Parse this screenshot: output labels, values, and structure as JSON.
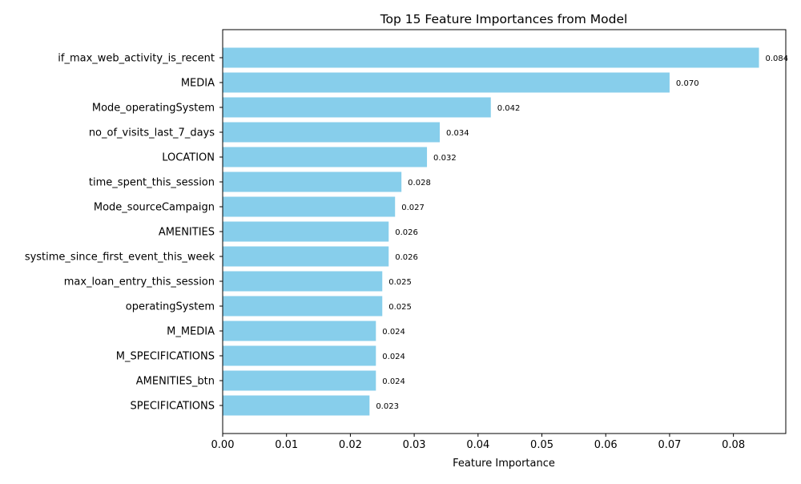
{
  "chart_data": {
    "type": "bar",
    "orientation": "horizontal",
    "title": "Top 15 Feature Importances from Model",
    "xlabel": "Feature Importance",
    "ylabel": "",
    "xlim": [
      0,
      0.0882
    ],
    "xticks": [
      0.0,
      0.01,
      0.02,
      0.03,
      0.04,
      0.05,
      0.06,
      0.07,
      0.08
    ],
    "xtick_labels": [
      "0.00",
      "0.01",
      "0.02",
      "0.03",
      "0.04",
      "0.05",
      "0.06",
      "0.07",
      "0.08"
    ],
    "grid": false,
    "bar_color": "#87ceeb",
    "categories": [
      "if_max_web_activity_is_recent",
      "MEDIA",
      "Mode_operatingSystem",
      "no_of_visits_last_7_days",
      "LOCATION",
      "time_spent_this_session",
      "Mode_sourceCampaign",
      "AMENITIES",
      "systime_since_first_event_this_week",
      "max_loan_entry_this_session",
      "operatingSystem",
      "M_MEDIA",
      "M_SPECIFICATIONS",
      "AMENITIES_btn",
      "SPECIFICATIONS"
    ],
    "values": [
      0.084,
      0.07,
      0.042,
      0.034,
      0.032,
      0.028,
      0.027,
      0.026,
      0.026,
      0.025,
      0.025,
      0.024,
      0.024,
      0.024,
      0.023
    ],
    "data_labels": [
      "0.084",
      "0.070",
      "0.042",
      "0.034",
      "0.032",
      "0.028",
      "0.027",
      "0.026",
      "0.026",
      "0.025",
      "0.025",
      "0.024",
      "0.024",
      "0.024",
      "0.023"
    ]
  }
}
